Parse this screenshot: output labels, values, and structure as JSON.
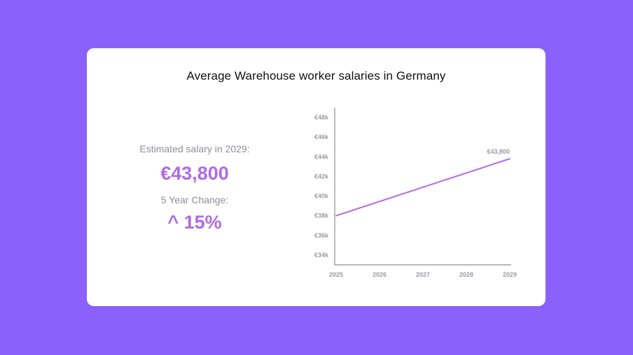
{
  "stats": {
    "estimated_label": "Estimated salary in 2029:",
    "estimated_value": "€43,800",
    "change_label": "5 Year Change:",
    "change_value": "^ 15%"
  },
  "colors": {
    "background": "#8b61fc",
    "accent": "#b06be0",
    "line": "#b36ae2",
    "axis": "#8d8f98"
  },
  "chart_data": {
    "type": "line",
    "title": "Average Warehouse worker salaries in Germany",
    "x": [
      2025,
      2026,
      2027,
      2028,
      2029
    ],
    "x_tick_labels": [
      "2025",
      "2026",
      "2027",
      "2028",
      "2029"
    ],
    "series": [
      {
        "values": [
          38000,
          39450,
          40900,
          42350,
          43800
        ]
      }
    ],
    "ylim": [
      33000,
      49000
    ],
    "y_ticks": [
      34000,
      36000,
      38000,
      40000,
      42000,
      44000,
      46000,
      48000
    ],
    "y_tick_labels": [
      "€34k",
      "€36k",
      "€38k",
      "€40k",
      "€42k",
      "€44k",
      "€46k",
      "€48k"
    ],
    "data_labels": [
      {
        "index": 4,
        "text": "€43,800"
      }
    ],
    "grid": false,
    "legend": "none"
  }
}
